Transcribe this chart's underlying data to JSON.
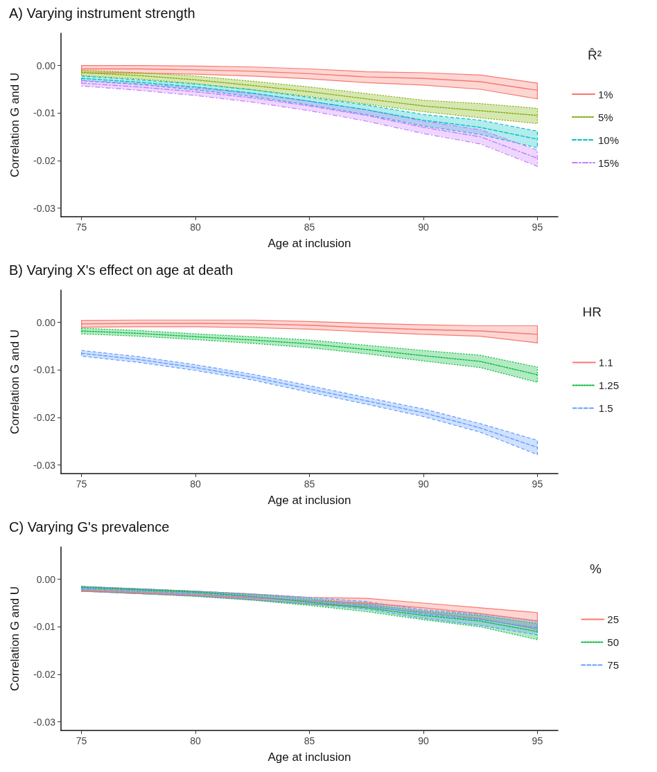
{
  "chart_data": [
    {
      "type": "line",
      "title": "A) Varying instrument strength",
      "xlabel": "Age at inclusion",
      "ylabel": "Correlation G and U",
      "legend_title": "R̂²",
      "legend": "right",
      "grid": false,
      "marker": "none",
      "xlim": [
        74.1,
        95.9
      ],
      "xticks": [
        75,
        80,
        85,
        90,
        95
      ],
      "ylim": [
        -0.0318,
        0.0068
      ],
      "yticks": [
        {
          "value": 0,
          "label": "0.00"
        },
        {
          "value": -0.01,
          "label": "-0.01"
        },
        {
          "value": -0.02,
          "label": "-0.02"
        },
        {
          "value": -0.03,
          "label": "-0.03"
        }
      ],
      "x": [
        75,
        77.5,
        80,
        82.5,
        85,
        87.5,
        90,
        92.5,
        95
      ],
      "series": [
        {
          "name": "1%",
          "color": "#f8766d",
          "line_style": "solid",
          "values": [
            -0.0007,
            -0.0007,
            -0.0009,
            -0.0012,
            -0.0017,
            -0.0024,
            -0.0027,
            -0.0034,
            -0.0052
          ],
          "lower": [
            -0.0015,
            -0.0016,
            -0.0018,
            -0.0022,
            -0.0028,
            -0.0036,
            -0.0041,
            -0.005,
            -0.007
          ],
          "upper": [
            0.0,
            0.0,
            -0.0001,
            -0.0003,
            -0.0007,
            -0.0013,
            -0.0015,
            -0.002,
            -0.0037
          ]
        },
        {
          "name": "5%",
          "color": "#7cae00",
          "line_style": "dotted",
          "values": [
            -0.0015,
            -0.0021,
            -0.003,
            -0.0042,
            -0.0055,
            -0.007,
            -0.0085,
            -0.0095,
            -0.0105
          ],
          "lower": [
            -0.0021,
            -0.0028,
            -0.0038,
            -0.0051,
            -0.0065,
            -0.0081,
            -0.0097,
            -0.011,
            -0.0122
          ],
          "upper": [
            -0.001,
            -0.0015,
            -0.0022,
            -0.0033,
            -0.0045,
            -0.0059,
            -0.0073,
            -0.008,
            -0.009
          ]
        },
        {
          "name": "10%",
          "color": "#00bfc4",
          "line_style": "dashed",
          "values": [
            -0.0027,
            -0.0035,
            -0.0045,
            -0.0058,
            -0.0075,
            -0.0093,
            -0.0115,
            -0.013,
            -0.0155
          ],
          "lower": [
            -0.0032,
            -0.004,
            -0.0051,
            -0.0065,
            -0.0083,
            -0.0103,
            -0.0127,
            -0.0145,
            -0.0173
          ],
          "upper": [
            -0.0022,
            -0.003,
            -0.0039,
            -0.0051,
            -0.0067,
            -0.0083,
            -0.0103,
            -0.0115,
            -0.0138
          ]
        },
        {
          "name": "15%",
          "color": "#c77cff",
          "line_style": "dashdot",
          "values": [
            -0.0037,
            -0.0045,
            -0.0055,
            -0.0068,
            -0.0085,
            -0.0105,
            -0.013,
            -0.015,
            -0.0195
          ],
          "lower": [
            -0.0043,
            -0.0052,
            -0.0063,
            -0.0077,
            -0.0095,
            -0.0117,
            -0.0143,
            -0.0165,
            -0.0212
          ],
          "upper": [
            -0.0031,
            -0.0038,
            -0.0047,
            -0.0059,
            -0.0075,
            -0.0093,
            -0.0117,
            -0.0135,
            -0.0178
          ]
        }
      ]
    },
    {
      "type": "line",
      "title": "B) Varying X's effect on age at death",
      "xlabel": "Age at inclusion",
      "ylabel": "Correlation G and U",
      "legend_title": "HR",
      "legend": "right",
      "grid": false,
      "marker": "none",
      "xlim": [
        74.1,
        95.9
      ],
      "xticks": [
        75,
        80,
        85,
        90,
        95
      ],
      "ylim": [
        -0.0318,
        0.0068
      ],
      "yticks": [
        {
          "value": 0,
          "label": "0.00"
        },
        {
          "value": -0.01,
          "label": "-0.01"
        },
        {
          "value": -0.02,
          "label": "-0.02"
        },
        {
          "value": -0.03,
          "label": "-0.03"
        }
      ],
      "x": [
        75,
        77.5,
        80,
        82.5,
        85,
        87.5,
        90,
        92.5,
        95
      ],
      "series": [
        {
          "name": "1.1",
          "color": "#f8766d",
          "line_style": "solid",
          "values": [
            -0.0003,
            -0.0002,
            -0.0002,
            -0.0003,
            -0.0006,
            -0.0011,
            -0.0015,
            -0.0018,
            -0.0025
          ],
          "lower": [
            -0.001,
            -0.0009,
            -0.0009,
            -0.0011,
            -0.0014,
            -0.002,
            -0.0025,
            -0.0029,
            -0.0043
          ],
          "upper": [
            0.0004,
            0.0005,
            0.0005,
            0.0005,
            0.0002,
            -0.0002,
            -0.0005,
            -0.0007,
            -0.0007
          ]
        },
        {
          "name": "1.25",
          "color": "#00ba38",
          "line_style": "dotted",
          "values": [
            -0.0018,
            -0.0023,
            -0.003,
            -0.0037,
            -0.0045,
            -0.0057,
            -0.007,
            -0.0082,
            -0.011
          ],
          "lower": [
            -0.0024,
            -0.0029,
            -0.0036,
            -0.0044,
            -0.0053,
            -0.0066,
            -0.0081,
            -0.0095,
            -0.0126
          ],
          "upper": [
            -0.0012,
            -0.0017,
            -0.0024,
            -0.003,
            -0.0037,
            -0.0048,
            -0.0059,
            -0.0069,
            -0.0094
          ]
        },
        {
          "name": "1.5",
          "color": "#619cff",
          "line_style": "dashed",
          "values": [
            -0.0065,
            -0.0078,
            -0.0095,
            -0.0115,
            -0.014,
            -0.0165,
            -0.019,
            -0.0222,
            -0.0263
          ],
          "lower": [
            -0.0071,
            -0.0084,
            -0.0101,
            -0.0121,
            -0.0147,
            -0.0172,
            -0.0198,
            -0.0231,
            -0.0278
          ],
          "upper": [
            -0.0059,
            -0.0072,
            -0.0089,
            -0.0109,
            -0.0133,
            -0.0158,
            -0.0182,
            -0.0213,
            -0.0248
          ]
        }
      ]
    },
    {
      "type": "line",
      "title": "C) Varying G's prevalence",
      "xlabel": "Age at inclusion",
      "ylabel": "Correlation G and U",
      "legend_title": "%",
      "legend": "right",
      "grid": false,
      "marker": "none",
      "xlim": [
        74.1,
        95.9
      ],
      "xticks": [
        75,
        80,
        85,
        90,
        95
      ],
      "ylim": [
        -0.0318,
        0.0068
      ],
      "yticks": [
        {
          "value": 0,
          "label": "0.00"
        },
        {
          "value": -0.01,
          "label": "-0.01"
        },
        {
          "value": -0.02,
          "label": "-0.02"
        },
        {
          "value": -0.03,
          "label": "-0.03"
        }
      ],
      "x": [
        75,
        77.5,
        80,
        82.5,
        85,
        87.5,
        90,
        92.5,
        95
      ],
      "series": [
        {
          "name": "25",
          "color": "#f8766d",
          "line_style": "solid",
          "values": [
            -0.0023,
            -0.0028,
            -0.0033,
            -0.0039,
            -0.0045,
            -0.005,
            -0.006,
            -0.0072,
            -0.0088
          ],
          "lower": [
            -0.0025,
            -0.003,
            -0.0035,
            -0.0043,
            -0.0052,
            -0.0058,
            -0.007,
            -0.0083,
            -0.0105
          ],
          "upper": [
            -0.0015,
            -0.002,
            -0.0025,
            -0.0031,
            -0.0038,
            -0.004,
            -0.005,
            -0.006,
            -0.007
          ]
        },
        {
          "name": "50",
          "color": "#00ba38",
          "line_style": "dotted",
          "values": [
            -0.0017,
            -0.0022,
            -0.0027,
            -0.0036,
            -0.0048,
            -0.006,
            -0.0076,
            -0.0088,
            -0.011
          ],
          "lower": [
            -0.0025,
            -0.003,
            -0.0036,
            -0.0044,
            -0.0055,
            -0.0068,
            -0.0085,
            -0.01,
            -0.0127
          ],
          "upper": [
            -0.0015,
            -0.002,
            -0.0025,
            -0.0032,
            -0.0041,
            -0.0052,
            -0.0067,
            -0.0076,
            -0.0093
          ]
        },
        {
          "name": "75",
          "color": "#619cff",
          "line_style": "dashed",
          "values": [
            -0.002,
            -0.0025,
            -0.003,
            -0.0037,
            -0.0045,
            -0.0055,
            -0.0073,
            -0.0085,
            -0.0102
          ],
          "lower": [
            -0.0025,
            -0.003,
            -0.0035,
            -0.0043,
            -0.0052,
            -0.0063,
            -0.0082,
            -0.0097,
            -0.0117
          ],
          "upper": [
            -0.0015,
            -0.002,
            -0.0025,
            -0.0031,
            -0.0038,
            -0.0047,
            -0.0064,
            -0.0073,
            -0.0087
          ]
        }
      ]
    }
  ]
}
